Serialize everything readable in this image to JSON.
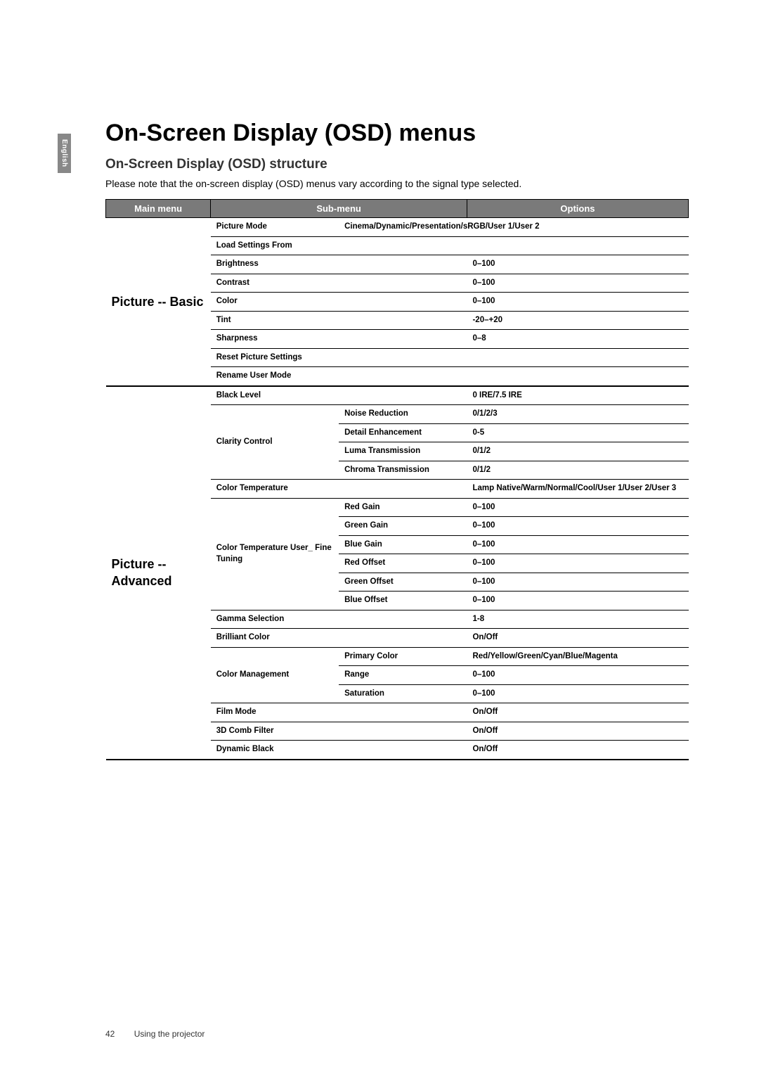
{
  "page": {
    "language_tab": "English",
    "title": "On-Screen Display (OSD) menus",
    "subtitle": "On-Screen Display (OSD) structure",
    "intro": "Please note that the on-screen display (OSD) menus vary according to the signal type selected.",
    "footer_page_number": "42",
    "footer_chapter": "Using the projector"
  },
  "table": {
    "header": {
      "main_menu": "Main menu",
      "sub_menu": "Sub-menu",
      "options": "Options"
    },
    "sections": [
      {
        "main_label": "Picture -- Basic",
        "rows": [
          {
            "sub1": "Picture Mode",
            "sub2": "",
            "opt": "Cinema/Dynamic/Presentation/sRGB/User 1/User 2",
            "span_sub": false,
            "opt_in_sub2": true
          },
          {
            "sub1": "Load Settings From",
            "sub2": "",
            "opt": "",
            "span_sub": true
          },
          {
            "sub1": "Brightness",
            "sub2": "",
            "opt": "0–100",
            "span_sub": true
          },
          {
            "sub1": "Contrast",
            "sub2": "",
            "opt": "0–100",
            "span_sub": true
          },
          {
            "sub1": "Color",
            "sub2": "",
            "opt": "0–100",
            "span_sub": true
          },
          {
            "sub1": "Tint",
            "sub2": "",
            "opt": "-20–+20",
            "span_sub": true
          },
          {
            "sub1": "Sharpness",
            "sub2": "",
            "opt": "0–8",
            "span_sub": true
          },
          {
            "sub1": "Reset Picture Settings",
            "sub2": "",
            "opt": "",
            "span_sub": true
          },
          {
            "sub1": "Rename User Mode",
            "sub2": "",
            "opt": "",
            "span_sub": true
          }
        ]
      },
      {
        "main_label": "Picture -- Advanced",
        "rows": [
          {
            "sub1": "Black Level",
            "sub2": "",
            "opt": "0 IRE/7.5 IRE",
            "span_sub": true
          },
          {
            "sub1": "Clarity Control",
            "sub1_rowspan": 4,
            "sub2": "Noise Reduction",
            "opt": "0/1/2/3"
          },
          {
            "sub2": "Detail Enhancement",
            "opt": "0-5"
          },
          {
            "sub2": "Luma Transmission",
            "opt": "0/1/2"
          },
          {
            "sub2": "Chroma Transmission",
            "opt": "0/1/2"
          },
          {
            "sub1": "Color Temperature",
            "sub2": "",
            "opt": "Lamp Native/Warm/Normal/Cool/User 1/User 2/User 3",
            "span_sub": true
          },
          {
            "sub1": "Color Temperature User_ Fine Tuning",
            "sub1_rowspan": 6,
            "sub2": "Red Gain",
            "opt": "0–100"
          },
          {
            "sub2": "Green Gain",
            "opt": "0–100"
          },
          {
            "sub2": "Blue Gain",
            "opt": "0–100"
          },
          {
            "sub2": "Red Offset",
            "opt": "0–100"
          },
          {
            "sub2": "Green Offset",
            "opt": "0–100"
          },
          {
            "sub2": "Blue Offset",
            "opt": "0–100"
          },
          {
            "sub1": "Gamma Selection",
            "sub2": "",
            "opt": "1-8",
            "span_sub": true
          },
          {
            "sub1": "Brilliant Color",
            "sub2": "",
            "opt": "On/Off",
            "span_sub": true
          },
          {
            "sub1": "Color Management",
            "sub1_rowspan": 3,
            "sub2": "Primary Color",
            "opt": "Red/Yellow/Green/Cyan/Blue/Magenta"
          },
          {
            "sub2": "Range",
            "opt": "0–100"
          },
          {
            "sub2": "Saturation",
            "opt": "0–100"
          },
          {
            "sub1": "Film Mode",
            "sub2": "",
            "opt": "On/Off",
            "span_sub": true
          },
          {
            "sub1": "3D Comb Filter",
            "sub2": "",
            "opt": "On/Off",
            "span_sub": true
          },
          {
            "sub1": "Dynamic Black",
            "sub2": "",
            "opt": "On/Off",
            "span_sub": true
          }
        ]
      }
    ]
  },
  "style": {
    "header_bg": "#7a7a7a",
    "header_fg": "#ffffff",
    "border_color": "#000000",
    "page_bg": "#ffffff",
    "lang_tab_bg": "#888888"
  }
}
